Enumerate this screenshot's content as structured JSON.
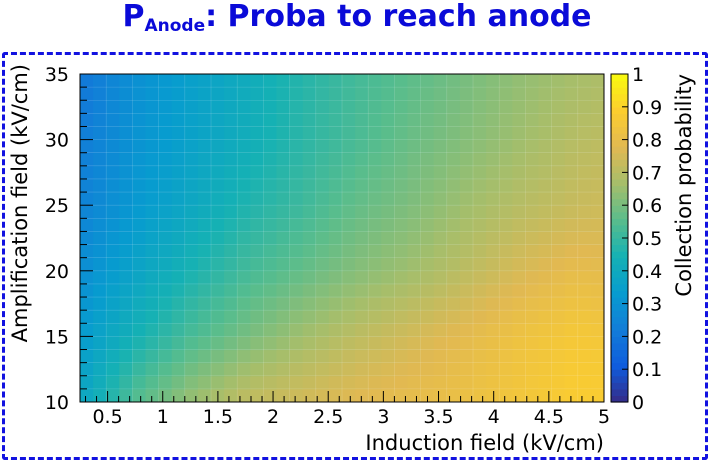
{
  "title": {
    "main": "P",
    "sub": "Anode",
    "rest": ": Proba to reach anode"
  },
  "colors": {
    "title": "#0a0ad8",
    "frame": "#1212e0"
  },
  "chart_data": {
    "type": "heatmap",
    "xlabel": "Induction field (kV/cm)",
    "ylabel": "Amplification field (kV/cm)",
    "zlabel": "Collection probability",
    "xlim": [
      0.25,
      5.0
    ],
    "ylim": [
      10,
      35
    ],
    "zlim": [
      0,
      1
    ],
    "xticks": [
      0.5,
      1,
      1.5,
      2,
      2.5,
      3,
      3.5,
      4,
      4.5,
      5
    ],
    "yticks": [
      10,
      15,
      20,
      25,
      30,
      35
    ],
    "zticks": [
      0,
      0.1,
      0.2,
      0.3,
      0.4,
      0.5,
      0.6,
      0.7,
      0.8,
      0.9,
      1
    ],
    "x": [
      0.25,
      0.75,
      1.25,
      1.75,
      2.25,
      2.75,
      3.25,
      3.75,
      4.25,
      4.75,
      5.0
    ],
    "y": [
      10,
      15,
      20,
      25,
      30,
      35
    ],
    "z": [
      [
        0.38,
        0.55,
        0.65,
        0.72,
        0.75,
        0.78,
        0.8,
        0.82,
        0.85,
        0.88,
        0.88
      ],
      [
        0.33,
        0.44,
        0.53,
        0.6,
        0.66,
        0.71,
        0.75,
        0.79,
        0.83,
        0.86,
        0.85
      ],
      [
        0.28,
        0.37,
        0.45,
        0.52,
        0.57,
        0.62,
        0.66,
        0.71,
        0.76,
        0.8,
        0.79
      ],
      [
        0.24,
        0.32,
        0.39,
        0.46,
        0.51,
        0.57,
        0.61,
        0.66,
        0.7,
        0.73,
        0.74
      ],
      [
        0.22,
        0.3,
        0.36,
        0.42,
        0.48,
        0.53,
        0.58,
        0.62,
        0.66,
        0.7,
        0.71
      ],
      [
        0.2,
        0.29,
        0.35,
        0.41,
        0.47,
        0.52,
        0.56,
        0.6,
        0.64,
        0.67,
        0.68
      ]
    ],
    "grid": true
  }
}
